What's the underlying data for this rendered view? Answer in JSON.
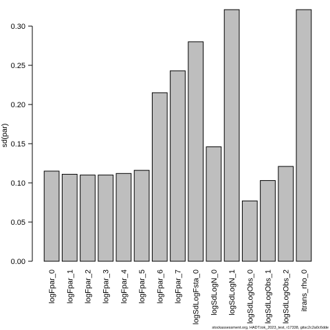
{
  "chart_data": {
    "type": "bar",
    "ylabel": "sd(par)",
    "xlabel": "",
    "title": "",
    "ylim": [
      0,
      0.32
    ],
    "yticks": [
      0.0,
      0.05,
      0.1,
      0.15,
      0.2,
      0.25,
      0.3
    ],
    "ytick_labels": [
      "0.00",
      "0.05",
      "0.10",
      "0.15",
      "0.20",
      "0.25",
      "0.30"
    ],
    "categories": [
      "logFpar_0",
      "logFpar_1",
      "logFpar_2",
      "logFpar_3",
      "logFpar_4",
      "logFpar_5",
      "logFpar_6",
      "logFpar_7",
      "logSdLogFsta_0",
      "logSdLogN_0",
      "logSdLogN_1",
      "logSdLogObs_0",
      "logSdLogObs_1",
      "logSdLogObs_2",
      "itrans_rho_0"
    ],
    "values": [
      0.115,
      0.111,
      0.11,
      0.11,
      0.112,
      0.116,
      0.215,
      0.243,
      0.28,
      0.146,
      0.321,
      0.077,
      0.103,
      0.121,
      0.321
    ],
    "grid": false,
    "bar_color": "#bebebe"
  },
  "footer_text": "stockassessment.org, HADT.tok_2023_test, r17338, gitsc2c2a0c6dde"
}
